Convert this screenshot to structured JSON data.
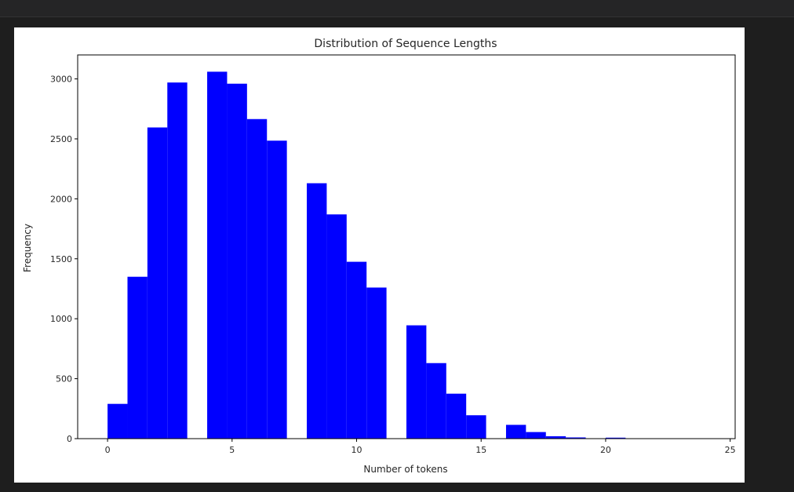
{
  "chart_data": {
    "type": "bar",
    "title": "Distribution of Sequence Lengths",
    "xlabel": "Number of tokens",
    "ylabel": "Frequency",
    "xlim": [
      -1.2,
      25.2
    ],
    "ylim": [
      0,
      3200
    ],
    "xticks": [
      0,
      5,
      10,
      15,
      20,
      25
    ],
    "yticks": [
      0,
      500,
      1000,
      1500,
      2000,
      2500,
      3000
    ],
    "bin_width": 0.8,
    "bar_color": "#0000ff",
    "grid": false,
    "bins": [
      {
        "x": 0.0,
        "value": 290
      },
      {
        "x": 0.8,
        "value": 1350
      },
      {
        "x": 1.6,
        "value": 2595
      },
      {
        "x": 2.4,
        "value": 2970
      },
      {
        "x": 4.0,
        "value": 3060
      },
      {
        "x": 4.8,
        "value": 2960
      },
      {
        "x": 5.6,
        "value": 2665
      },
      {
        "x": 6.4,
        "value": 2485
      },
      {
        "x": 8.0,
        "value": 2130
      },
      {
        "x": 8.8,
        "value": 1870
      },
      {
        "x": 9.6,
        "value": 1475
      },
      {
        "x": 10.4,
        "value": 1260
      },
      {
        "x": 12.0,
        "value": 945
      },
      {
        "x": 12.8,
        "value": 630
      },
      {
        "x": 13.6,
        "value": 375
      },
      {
        "x": 14.4,
        "value": 195
      },
      {
        "x": 16.0,
        "value": 115
      },
      {
        "x": 16.8,
        "value": 55
      },
      {
        "x": 17.6,
        "value": 20
      },
      {
        "x": 18.4,
        "value": 10
      },
      {
        "x": 20.0,
        "value": 8
      }
    ]
  }
}
